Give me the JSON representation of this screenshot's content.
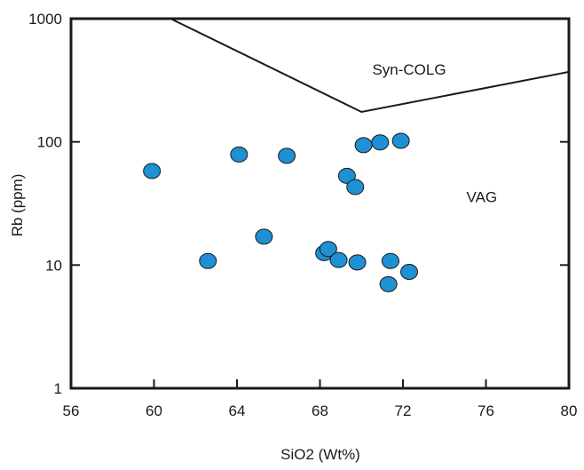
{
  "chart_data": {
    "type": "scatter",
    "xlabel": "SiO2 (Wt%)",
    "ylabel": "Rb (ppm)",
    "xlim": [
      56,
      80
    ],
    "ylim": [
      1,
      1000
    ],
    "y_scale": "log",
    "x_ticks": [
      56,
      60,
      64,
      68,
      72,
      76,
      80
    ],
    "y_ticks": [
      1,
      10,
      100,
      1000
    ],
    "grid": false,
    "marker_color": "#1e90d4",
    "marker_edge_color": "#1a1a1a",
    "boundary_line": [
      {
        "x": 60.8,
        "y": 1000
      },
      {
        "x": 70.0,
        "y": 175
      },
      {
        "x": 80.0,
        "y": 370
      }
    ],
    "region_labels": [
      {
        "text": "Syn-COLG",
        "x": 72.3,
        "y": 380
      },
      {
        "text": "VAG",
        "x": 75.8,
        "y": 35
      }
    ],
    "points": [
      {
        "x": 59.9,
        "y": 58
      },
      {
        "x": 62.6,
        "y": 10.8
      },
      {
        "x": 64.1,
        "y": 79
      },
      {
        "x": 65.3,
        "y": 17
      },
      {
        "x": 66.4,
        "y": 77
      },
      {
        "x": 68.2,
        "y": 12.5
      },
      {
        "x": 68.4,
        "y": 13.5
      },
      {
        "x": 68.9,
        "y": 11
      },
      {
        "x": 69.3,
        "y": 53
      },
      {
        "x": 69.7,
        "y": 43
      },
      {
        "x": 69.8,
        "y": 10.5
      },
      {
        "x": 70.1,
        "y": 94
      },
      {
        "x": 70.9,
        "y": 99
      },
      {
        "x": 71.3,
        "y": 7
      },
      {
        "x": 71.4,
        "y": 10.8
      },
      {
        "x": 71.9,
        "y": 102
      },
      {
        "x": 72.3,
        "y": 8.8
      }
    ]
  }
}
